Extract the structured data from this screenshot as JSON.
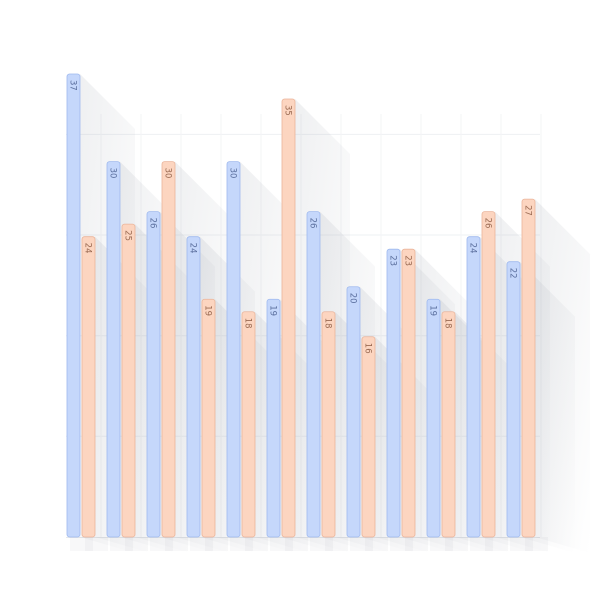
{
  "chart_data": {
    "type": "bar",
    "title": "",
    "xlabel": "",
    "ylabel": "",
    "grid": true,
    "legend": "none",
    "ylim": [
      0,
      37
    ],
    "categories": [
      "1",
      "2",
      "3",
      "4",
      "5",
      "6",
      "7",
      "8",
      "9",
      "10",
      "11",
      "12"
    ],
    "series": [
      {
        "color": "#c5d7fb",
        "stroke": "#9fb9ee",
        "label_color": "#5b6f9e",
        "values": [
          37,
          30,
          26,
          24,
          30,
          19,
          26,
          20,
          23,
          19,
          24,
          22
        ]
      },
      {
        "color": "#fcd5c0",
        "stroke": "#eab49a",
        "label_color": "#9a6a52",
        "values": [
          24,
          25,
          30,
          19,
          18,
          35,
          18,
          16,
          23,
          18,
          26,
          27
        ]
      }
    ]
  }
}
